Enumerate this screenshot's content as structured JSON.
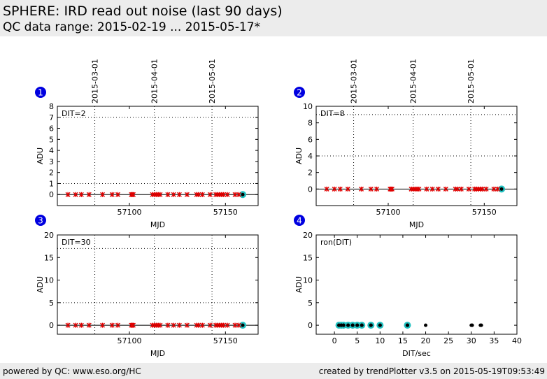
{
  "header": {
    "title": "SPHERE: IRD read out noise (last 90 days)",
    "subtitle": "QC data range: 2015-02-19 ... 2015-05-17*"
  },
  "footer": {
    "left": "powered by QC: www.eso.org/HC",
    "right": "created by trendPlotter v3.5 on 2015-05-19T09:53:49"
  },
  "colors": {
    "marker": "#e00000",
    "highlight": "#20c0c0",
    "badge": "#0000e0",
    "point": "#000000"
  },
  "chart_data": [
    {
      "id": "1",
      "type": "scatter",
      "annotation": "DIT=2",
      "xlabel": "MJD",
      "ylabel": "ADU",
      "xlim": [
        57062.5,
        57167
      ],
      "ylim": [
        -1,
        8
      ],
      "xticks": [
        57100,
        57150
      ],
      "yticks": [
        0,
        1,
        2,
        3,
        4,
        5,
        6,
        7,
        8
      ],
      "hlines_dotted": [
        1,
        7
      ],
      "hline_solid": 0,
      "date_marks": [
        {
          "x": 57082,
          "label": "2015-03-01"
        },
        {
          "x": 57113,
          "label": "2015-04-01"
        },
        {
          "x": 57143,
          "label": "2015-05-01"
        }
      ],
      "x": [
        57068,
        57072,
        57075,
        57079,
        57086,
        57091,
        57094,
        57101,
        57101.5,
        57102,
        57112,
        57113,
        57114,
        57115,
        57116,
        57120,
        57123,
        57126,
        57130,
        57135,
        57136,
        57138,
        57142,
        57145,
        57146,
        57147,
        57148,
        57149,
        57151,
        57155,
        57157
      ],
      "y": [
        0,
        0,
        0,
        0,
        0,
        0,
        0,
        0,
        0,
        0,
        0,
        0,
        0,
        0,
        0,
        0,
        0,
        0,
        0,
        0,
        0,
        0,
        0,
        0,
        0,
        0,
        0,
        0,
        0,
        0,
        0
      ],
      "highlight": [
        {
          "x": 57159,
          "y": 0
        }
      ]
    },
    {
      "id": "2",
      "type": "scatter",
      "annotation": "DIT=8",
      "xlabel": "MJD",
      "ylabel": "ADU",
      "xlim": [
        57062.5,
        57167
      ],
      "ylim": [
        -2,
        10
      ],
      "xticks": [
        57100,
        57150
      ],
      "yticks": [
        0,
        2,
        4,
        6,
        8,
        10
      ],
      "hlines_dotted": [
        4,
        9
      ],
      "hline_solid": 0,
      "date_marks": [
        {
          "x": 57082,
          "label": "2015-03-01"
        },
        {
          "x": 57113,
          "label": "2015-04-01"
        },
        {
          "x": 57143,
          "label": "2015-05-01"
        }
      ],
      "x": [
        57068,
        57072,
        57075,
        57079,
        57086,
        57091,
        57094,
        57101,
        57101.5,
        57102,
        57112,
        57113,
        57114,
        57115,
        57116,
        57120,
        57123,
        57126,
        57130,
        57135,
        57136,
        57138,
        57142,
        57145,
        57146,
        57147,
        57148,
        57149,
        57151,
        57155,
        57157
      ],
      "y": [
        0,
        0,
        0,
        0,
        0,
        0,
        0,
        0,
        0,
        0,
        0,
        0,
        0,
        0,
        0,
        0,
        0,
        0,
        0,
        0,
        0,
        0,
        0,
        0,
        0,
        0,
        0,
        0,
        0,
        0,
        0
      ],
      "highlight": [
        {
          "x": 57159,
          "y": 0
        }
      ]
    },
    {
      "id": "3",
      "type": "scatter",
      "annotation": "DIT=30",
      "xlabel": "MJD",
      "ylabel": "ADU",
      "xlim": [
        57062.5,
        57167
      ],
      "ylim": [
        -2,
        20
      ],
      "xticks": [
        57100,
        57150
      ],
      "yticks": [
        0,
        5,
        10,
        15,
        20
      ],
      "hlines_dotted": [
        5,
        17
      ],
      "hline_solid": 0,
      "date_marks": [
        {
          "x": 57082,
          "label": ""
        },
        {
          "x": 57113,
          "label": ""
        },
        {
          "x": 57143,
          "label": ""
        }
      ],
      "x": [
        57068,
        57072,
        57075,
        57079,
        57086,
        57091,
        57094,
        57101,
        57101.5,
        57102,
        57112,
        57113,
        57114,
        57115,
        57116,
        57120,
        57123,
        57126,
        57130,
        57135,
        57136,
        57138,
        57142,
        57145,
        57146,
        57147,
        57148,
        57149,
        57151,
        57155,
        57157
      ],
      "y": [
        0,
        0,
        0,
        0,
        0,
        0,
        0,
        0,
        0,
        0,
        0,
        0,
        0,
        0,
        0,
        0,
        0,
        0,
        0,
        0,
        0,
        0,
        0,
        0,
        0,
        0,
        0,
        0,
        0,
        0,
        0
      ],
      "highlight": [
        {
          "x": 57159,
          "y": 0
        }
      ]
    },
    {
      "id": "4",
      "type": "scatter",
      "annotation": "ron(DIT)",
      "xlabel": "DIT/sec",
      "ylabel": "ADU",
      "xlim": [
        -4,
        40
      ],
      "ylim": [
        -2,
        20
      ],
      "xticks": [
        0,
        5,
        10,
        15,
        20,
        25,
        30,
        35,
        40
      ],
      "yticks": [
        0,
        5,
        10,
        15,
        20
      ],
      "hlines_dotted": [],
      "hline_solid": null,
      "date_marks": [],
      "x": [
        1,
        1.5,
        2,
        3,
        4,
        5,
        6,
        8,
        10,
        16,
        20,
        30,
        30.2,
        32,
        32.2
      ],
      "y": [
        0,
        0,
        0,
        0,
        0,
        0,
        0,
        0,
        0,
        0,
        0,
        0,
        0,
        0,
        0
      ],
      "highlight": [
        {
          "x": 1,
          "y": 0
        },
        {
          "x": 1.5,
          "y": 0
        },
        {
          "x": 2,
          "y": 0
        },
        {
          "x": 3,
          "y": 0
        },
        {
          "x": 4,
          "y": 0
        },
        {
          "x": 5,
          "y": 0
        },
        {
          "x": 6,
          "y": 0
        },
        {
          "x": 8,
          "y": 0
        },
        {
          "x": 10,
          "y": 0
        },
        {
          "x": 16,
          "y": 0
        }
      ]
    }
  ]
}
